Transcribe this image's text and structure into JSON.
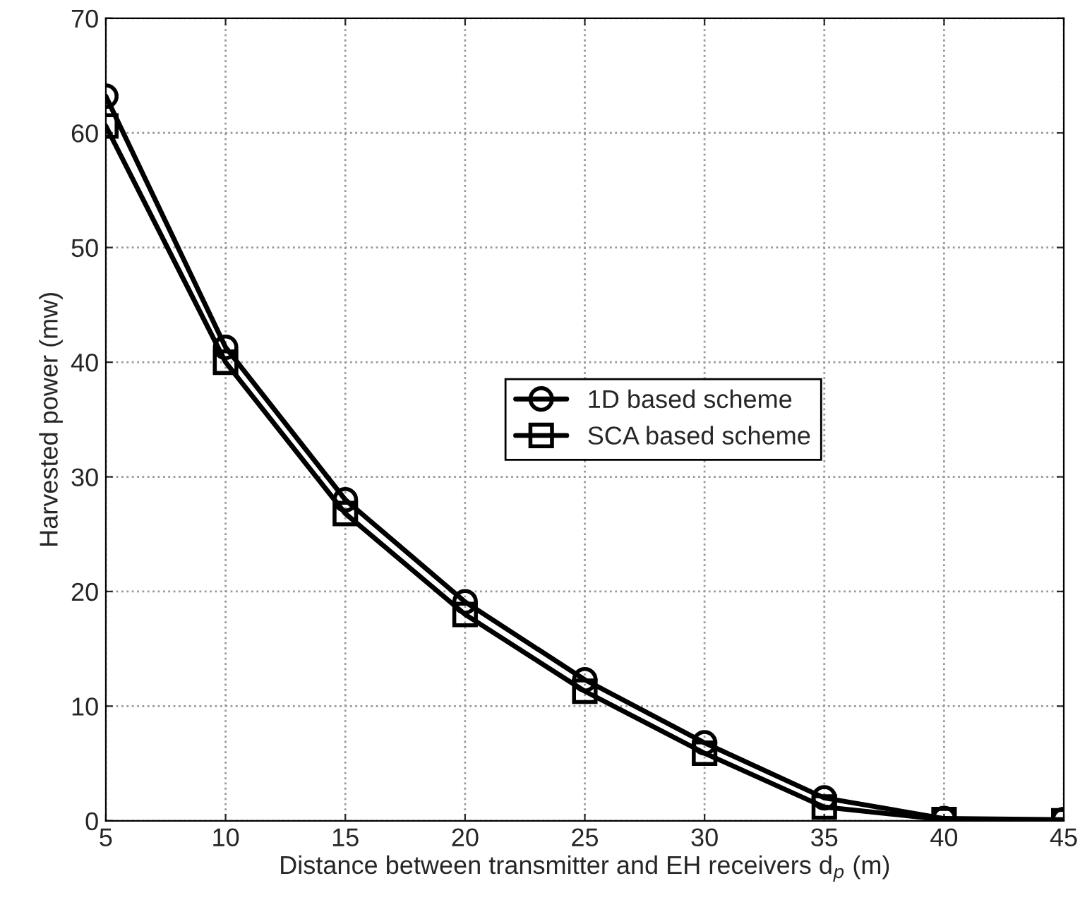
{
  "chart_data": {
    "type": "line",
    "xlabel": "Distance between transmitter and EH receivers d$_{p}$ (m)",
    "ylabel": "Harvested power (mw)",
    "x": [
      5,
      10,
      15,
      20,
      25,
      30,
      35,
      40,
      45
    ],
    "series": [
      {
        "name": "1D based scheme",
        "color": "#000000",
        "marker": "circle",
        "values": [
          63.2,
          41.3,
          28.0,
          19.1,
          12.3,
          6.8,
          2.0,
          0.2,
          0.1
        ]
      },
      {
        "name": "SCA based scheme",
        "color": "#000000",
        "marker": "square",
        "values": [
          60.6,
          40.0,
          26.8,
          18.0,
          11.3,
          5.9,
          1.2,
          0.1,
          0.0
        ]
      }
    ],
    "xlim": [
      5,
      45
    ],
    "xticks": [
      5,
      10,
      15,
      20,
      25,
      30,
      35,
      40,
      45
    ],
    "ylim": [
      0,
      70
    ],
    "yticks": [
      0,
      10,
      20,
      30,
      40,
      50,
      60,
      70
    ],
    "grid": true,
    "legend": "right",
    "line_style": "solid"
  }
}
